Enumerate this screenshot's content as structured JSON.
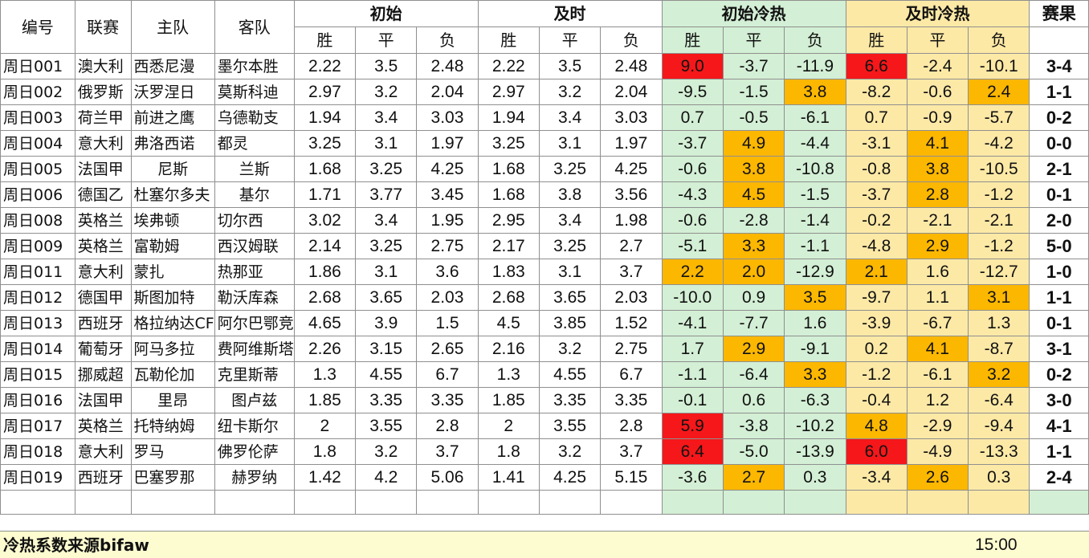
{
  "header": {
    "id": "编号",
    "league": "联赛",
    "home": "主队",
    "away": "客队",
    "initial": "初始",
    "live": "及时",
    "initial_hotcold": "初始冷热",
    "live_hotcold": "及时冷热",
    "result": "赛果",
    "win": "胜",
    "draw": "平",
    "lose": "负"
  },
  "rows": [
    {
      "id": "周日001",
      "league": "澳大利",
      "home": "西悉尼漫",
      "away": "墨尔本胜",
      "i_w": "2.22",
      "i_d": "3.5",
      "i_l": "2.48",
      "l_w": "2.22",
      "l_d": "3.5",
      "l_l": "2.48",
      "ih_w": "9.0",
      "ih_d": "-3.7",
      "ih_l": "-11.9",
      "lh_w": "6.6",
      "lh_d": "-2.4",
      "lh_l": "-10.1",
      "result": "3-4"
    },
    {
      "id": "周日002",
      "league": "俄罗斯",
      "home": "沃罗涅日",
      "away": "莫斯科迪",
      "i_w": "2.97",
      "i_d": "3.2",
      "i_l": "2.04",
      "l_w": "2.97",
      "l_d": "3.2",
      "l_l": "2.04",
      "ih_w": "-9.5",
      "ih_d": "-1.5",
      "ih_l": "3.8",
      "lh_w": "-8.2",
      "lh_d": "-0.6",
      "lh_l": "2.4",
      "result": "1-1"
    },
    {
      "id": "周日003",
      "league": "荷兰甲",
      "home": "前进之鹰",
      "away": "乌德勒支",
      "i_w": "1.94",
      "i_d": "3.4",
      "i_l": "3.03",
      "l_w": "1.94",
      "l_d": "3.4",
      "l_l": "3.03",
      "ih_w": "0.7",
      "ih_d": "-0.5",
      "ih_l": "-6.1",
      "lh_w": "0.7",
      "lh_d": "-0.9",
      "lh_l": "-5.7",
      "result": "0-2"
    },
    {
      "id": "周日004",
      "league": "意大利",
      "home": "弗洛西诺",
      "away": "都灵",
      "i_w": "3.25",
      "i_d": "3.1",
      "i_l": "1.97",
      "l_w": "3.25",
      "l_d": "3.1",
      "l_l": "1.97",
      "ih_w": "-3.7",
      "ih_d": "4.9",
      "ih_l": "-4.4",
      "lh_w": "-3.1",
      "lh_d": "4.1",
      "lh_l": "-4.2",
      "result": "0-0"
    },
    {
      "id": "周日005",
      "league": "法国甲",
      "home": "尼斯",
      "away": "兰斯",
      "i_w": "1.68",
      "i_d": "3.25",
      "i_l": "4.25",
      "l_w": "1.68",
      "l_d": "3.25",
      "l_l": "4.25",
      "ih_w": "-0.6",
      "ih_d": "3.8",
      "ih_l": "-10.8",
      "lh_w": "-0.8",
      "lh_d": "3.8",
      "lh_l": "-10.5",
      "result": "2-1"
    },
    {
      "id": "周日006",
      "league": "德国乙",
      "home": "杜塞尔多夫",
      "away": "基尔",
      "i_w": "1.71",
      "i_d": "3.77",
      "i_l": "3.45",
      "l_w": "1.68",
      "l_d": "3.8",
      "l_l": "3.56",
      "ih_w": "-4.3",
      "ih_d": "4.5",
      "ih_l": "-1.5",
      "lh_w": "-3.7",
      "lh_d": "2.8",
      "lh_l": "-1.2",
      "result": "0-1"
    },
    {
      "id": "周日008",
      "league": "英格兰",
      "home": "埃弗顿",
      "away": "切尔西",
      "i_w": "3.02",
      "i_d": "3.4",
      "i_l": "1.95",
      "l_w": "2.95",
      "l_d": "3.4",
      "l_l": "1.98",
      "ih_w": "-0.6",
      "ih_d": "-2.8",
      "ih_l": "-1.4",
      "lh_w": "-0.2",
      "lh_d": "-2.1",
      "lh_l": "-2.1",
      "result": "2-0"
    },
    {
      "id": "周日009",
      "league": "英格兰",
      "home": "富勒姆",
      "away": "西汉姆联",
      "i_w": "2.14",
      "i_d": "3.25",
      "i_l": "2.75",
      "l_w": "2.17",
      "l_d": "3.25",
      "l_l": "2.7",
      "ih_w": "-5.1",
      "ih_d": "3.3",
      "ih_l": "-1.1",
      "lh_w": "-4.8",
      "lh_d": "2.9",
      "lh_l": "-1.2",
      "result": "5-0"
    },
    {
      "id": "周日011",
      "league": "意大利",
      "home": "蒙扎",
      "away": "热那亚",
      "i_w": "1.86",
      "i_d": "3.1",
      "i_l": "3.6",
      "l_w": "1.83",
      "l_d": "3.1",
      "l_l": "3.7",
      "ih_w": "2.2",
      "ih_d": "2.0",
      "ih_l": "-12.9",
      "lh_w": "2.1",
      "lh_d": "1.6",
      "lh_l": "-12.7",
      "result": "1-0"
    },
    {
      "id": "周日012",
      "league": "德国甲",
      "home": "斯图加特",
      "away": "勒沃库森",
      "i_w": "2.68",
      "i_d": "3.65",
      "i_l": "2.03",
      "l_w": "2.68",
      "l_d": "3.65",
      "l_l": "2.03",
      "ih_w": "-10.0",
      "ih_d": "0.9",
      "ih_l": "3.5",
      "lh_w": "-9.7",
      "lh_d": "1.1",
      "lh_l": "3.1",
      "result": "1-1"
    },
    {
      "id": "周日013",
      "league": "西班牙",
      "home": "格拉纳达CF",
      "away": "阿尔巴鄂竞",
      "i_w": "4.65",
      "i_d": "3.9",
      "i_l": "1.5",
      "l_w": "4.5",
      "l_d": "3.85",
      "l_l": "1.52",
      "ih_w": "-4.1",
      "ih_d": "-7.7",
      "ih_l": "1.6",
      "lh_w": "-3.9",
      "lh_d": "-6.7",
      "lh_l": "1.3",
      "result": "0-1"
    },
    {
      "id": "周日014",
      "league": "葡萄牙",
      "home": "阿马多拉",
      "away": "费阿维斯塔",
      "i_w": "2.26",
      "i_d": "3.15",
      "i_l": "2.65",
      "l_w": "2.16",
      "l_d": "3.2",
      "l_l": "2.75",
      "ih_w": "1.7",
      "ih_d": "2.9",
      "ih_l": "-9.1",
      "lh_w": "0.2",
      "lh_d": "4.1",
      "lh_l": "-8.7",
      "result": "3-1"
    },
    {
      "id": "周日015",
      "league": "挪威超",
      "home": "瓦勒伦加",
      "away": "克里斯蒂",
      "i_w": "1.3",
      "i_d": "4.55",
      "i_l": "6.7",
      "l_w": "1.3",
      "l_d": "4.55",
      "l_l": "6.7",
      "ih_w": "-1.1",
      "ih_d": "-6.4",
      "ih_l": "3.3",
      "lh_w": "-1.2",
      "lh_d": "-6.1",
      "lh_l": "3.2",
      "result": "0-2"
    },
    {
      "id": "周日016",
      "league": "法国甲",
      "home": "里昂",
      "away": "图卢兹",
      "i_w": "1.85",
      "i_d": "3.35",
      "i_l": "3.35",
      "l_w": "1.85",
      "l_d": "3.35",
      "l_l": "3.35",
      "ih_w": "-0.1",
      "ih_d": "0.6",
      "ih_l": "-6.3",
      "lh_w": "-0.4",
      "lh_d": "1.2",
      "lh_l": "-6.4",
      "result": "3-0"
    },
    {
      "id": "周日017",
      "league": "英格兰",
      "home": "托特纳姆",
      "away": "纽卡斯尔",
      "i_w": "2",
      "i_d": "3.55",
      "i_l": "2.8",
      "l_w": "2",
      "l_d": "3.55",
      "l_l": "2.8",
      "ih_w": "5.9",
      "ih_d": "-3.8",
      "ih_l": "-10.2",
      "lh_w": "4.8",
      "lh_d": "-2.9",
      "lh_l": "-9.4",
      "result": "4-1"
    },
    {
      "id": "周日018",
      "league": "意大利",
      "home": "罗马",
      "away": "佛罗伦萨",
      "i_w": "1.8",
      "i_d": "3.2",
      "i_l": "3.7",
      "l_w": "1.8",
      "l_d": "3.2",
      "l_l": "3.7",
      "ih_w": "6.4",
      "ih_d": "-5.0",
      "ih_l": "-13.9",
      "lh_w": "6.0",
      "lh_d": "-4.9",
      "lh_l": "-13.3",
      "result": "1-1"
    },
    {
      "id": "周日019",
      "league": "西班牙",
      "home": "巴塞罗那",
      "away": "赫罗纳",
      "i_w": "1.42",
      "i_d": "4.2",
      "i_l": "5.06",
      "l_w": "1.41",
      "l_d": "4.25",
      "l_l": "5.15",
      "ih_w": "-3.6",
      "ih_d": "2.7",
      "ih_l": "0.3",
      "lh_w": "-3.4",
      "lh_d": "2.6",
      "lh_l": "0.3",
      "result": "2-4"
    }
  ],
  "footer": {
    "source_note": "冷热系数来源bifaw",
    "time": "15:00"
  },
  "colors": {
    "initial_hotcold_bg": "#d3efd5",
    "live_hotcold_bg": "#fde9a6",
    "hot_red": "#f5171a",
    "warm_orange": "#fcb700",
    "footer_bg": "#fdfbd0"
  }
}
